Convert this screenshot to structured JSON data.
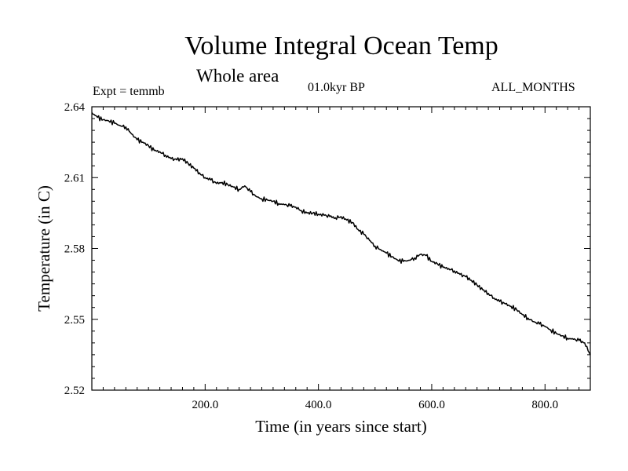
{
  "header": {
    "title": "Volume Integral Ocean Temp",
    "subtitle": "Whole area",
    "experiment": "Expt = temmb",
    "period": "01.0kyr BP",
    "months": "ALL_MONTHS"
  },
  "chart_data": {
    "type": "line",
    "title": "Volume Integral Ocean Temp",
    "subtitle": "Whole area",
    "xlabel": "Time (in years since start)",
    "ylabel": "Temperature (in C)",
    "xlim": [
      0,
      880
    ],
    "ylim": [
      2.52,
      2.64
    ],
    "xticks": [
      200,
      400,
      600,
      800
    ],
    "xtick_labels": [
      "200.0",
      "400.0",
      "600.0",
      "800.0"
    ],
    "yticks": [
      2.52,
      2.55,
      2.58,
      2.61,
      2.64
    ],
    "ytick_labels": [
      "2.52",
      "2.55",
      "2.58",
      "2.61",
      "2.64"
    ],
    "grid": false,
    "series": [
      {
        "name": "Volume Integral Ocean Temp",
        "x": [
          0,
          10,
          20,
          30,
          40,
          50,
          60,
          70,
          80,
          90,
          100,
          110,
          120,
          130,
          140,
          150,
          160,
          170,
          180,
          190,
          200,
          210,
          220,
          230,
          240,
          250,
          260,
          270,
          280,
          290,
          300,
          310,
          320,
          330,
          340,
          350,
          360,
          370,
          380,
          390,
          400,
          410,
          420,
          430,
          440,
          450,
          460,
          470,
          480,
          490,
          500,
          510,
          520,
          530,
          540,
          550,
          560,
          570,
          580,
          590,
          600,
          610,
          620,
          630,
          640,
          650,
          660,
          670,
          680,
          690,
          700,
          710,
          720,
          730,
          740,
          750,
          760,
          770,
          780,
          790,
          800,
          810,
          820,
          830,
          840,
          850,
          860,
          870,
          880
        ],
        "values": [
          2.6375,
          2.6355,
          2.6345,
          2.634,
          2.633,
          2.632,
          2.6315,
          2.6285,
          2.626,
          2.625,
          2.6235,
          2.6215,
          2.621,
          2.6195,
          2.618,
          2.6175,
          2.618,
          2.616,
          2.614,
          2.612,
          2.61,
          2.609,
          2.6075,
          2.608,
          2.607,
          2.606,
          2.605,
          2.6065,
          2.604,
          2.602,
          2.601,
          2.6005,
          2.6,
          2.599,
          2.5985,
          2.598,
          2.5975,
          2.596,
          2.595,
          2.595,
          2.5945,
          2.594,
          2.5935,
          2.593,
          2.5935,
          2.592,
          2.591,
          2.588,
          2.586,
          2.5835,
          2.581,
          2.5795,
          2.578,
          2.5765,
          2.575,
          2.5745,
          2.575,
          2.576,
          2.5775,
          2.577,
          2.5745,
          2.5735,
          2.572,
          2.5715,
          2.5705,
          2.569,
          2.568,
          2.5665,
          2.5645,
          2.5625,
          2.561,
          2.559,
          2.5575,
          2.5565,
          2.5555,
          2.554,
          2.552,
          2.5505,
          2.549,
          2.548,
          2.547,
          2.5455,
          2.544,
          2.543,
          2.542,
          2.5415,
          2.541,
          2.54,
          2.535
        ]
      }
    ]
  }
}
